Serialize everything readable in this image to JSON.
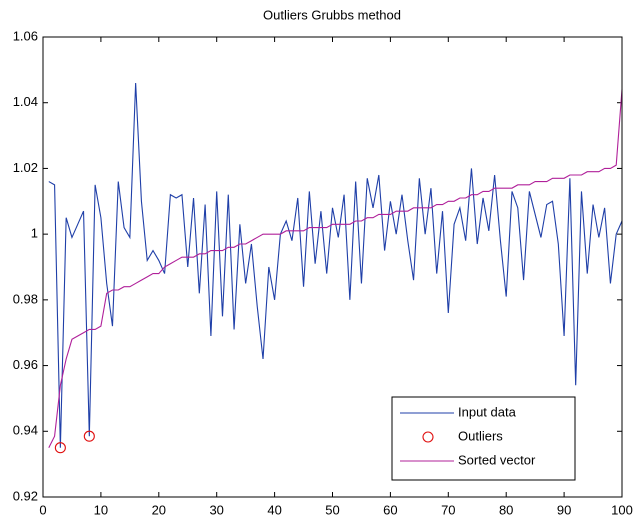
{
  "chart_data": {
    "type": "line",
    "title": "Outliers Grubbs method",
    "x": [
      1,
      2,
      3,
      4,
      5,
      6,
      7,
      8,
      9,
      10,
      11,
      12,
      13,
      14,
      15,
      16,
      17,
      18,
      19,
      20,
      21,
      22,
      23,
      24,
      25,
      26,
      27,
      28,
      29,
      30,
      31,
      32,
      33,
      34,
      35,
      36,
      37,
      38,
      39,
      40,
      41,
      42,
      43,
      44,
      45,
      46,
      47,
      48,
      49,
      50,
      51,
      52,
      53,
      54,
      55,
      56,
      57,
      58,
      59,
      60,
      61,
      62,
      63,
      64,
      65,
      66,
      67,
      68,
      69,
      70,
      71,
      72,
      73,
      74,
      75,
      76,
      77,
      78,
      79,
      80,
      81,
      82,
      83,
      84,
      85,
      86,
      87,
      88,
      89,
      90,
      91,
      92,
      93,
      94,
      95,
      96,
      97,
      98,
      99,
      100
    ],
    "series": [
      {
        "name": "Input data",
        "color": "#1f3fa8",
        "values": [
          1.016,
          1.015,
          0.935,
          1.005,
          0.999,
          1.003,
          1.007,
          0.9385,
          1.015,
          1.005,
          0.985,
          0.972,
          1.016,
          1.002,
          0.999,
          1.046,
          1.01,
          0.992,
          0.995,
          0.992,
          0.988,
          1.012,
          1.011,
          1.012,
          0.99,
          1.011,
          0.982,
          1.009,
          0.969,
          1.013,
          0.975,
          1.012,
          0.971,
          1.003,
          0.985,
          0.997,
          0.978,
          0.962,
          0.99,
          0.98,
          1.0,
          1.004,
          0.998,
          1.011,
          0.984,
          1.013,
          0.991,
          1.007,
          0.988,
          1.008,
          0.999,
          1.012,
          0.98,
          1.016,
          0.985,
          1.017,
          1.008,
          1.018,
          0.995,
          1.01,
          1.0,
          1.012,
          0.998,
          0.986,
          1.017,
          1.0,
          1.014,
          0.988,
          1.007,
          0.976,
          1.003,
          1.008,
          0.998,
          1.02,
          0.997,
          1.011,
          1.001,
          1.018,
          0.998,
          0.981,
          1.013,
          1.008,
          0.986,
          1.013,
          1.006,
          0.999,
          1.009,
          1.01,
          0.997,
          0.969,
          1.017,
          0.954,
          1.013,
          0.988,
          1.009,
          0.999,
          1.008,
          0.985,
          1.0,
          1.004
        ]
      },
      {
        "name": "Outliers",
        "color": "#e01010",
        "marker": "circle",
        "x": [
          3,
          8
        ],
        "values": [
          0.935,
          0.9385
        ]
      },
      {
        "name": "Sorted vector",
        "color": "#b0209a",
        "values": [
          0.935,
          0.9385,
          0.954,
          0.962,
          0.968,
          0.969,
          0.97,
          0.971,
          0.971,
          0.972,
          0.982,
          0.983,
          0.983,
          0.984,
          0.984,
          0.985,
          0.986,
          0.987,
          0.988,
          0.988,
          0.99,
          0.991,
          0.992,
          0.993,
          0.993,
          0.993,
          0.994,
          0.994,
          0.995,
          0.995,
          0.995,
          0.996,
          0.996,
          0.997,
          0.997,
          0.998,
          0.999,
          1.0,
          1.0,
          1.0,
          1.0,
          1.001,
          1.001,
          1.001,
          1.001,
          1.002,
          1.002,
          1.002,
          1.002,
          1.003,
          1.003,
          1.003,
          1.003,
          1.004,
          1.004,
          1.005,
          1.005,
          1.006,
          1.006,
          1.006,
          1.007,
          1.007,
          1.007,
          1.008,
          1.008,
          1.008,
          1.008,
          1.009,
          1.009,
          1.01,
          1.01,
          1.011,
          1.011,
          1.012,
          1.012,
          1.013,
          1.013,
          1.014,
          1.014,
          1.014,
          1.014,
          1.015,
          1.015,
          1.015,
          1.016,
          1.016,
          1.016,
          1.017,
          1.017,
          1.017,
          1.018,
          1.018,
          1.018,
          1.019,
          1.019,
          1.019,
          1.02,
          1.02,
          1.021,
          1.044
        ]
      }
    ],
    "xlim": [
      0,
      100
    ],
    "xticks": [
      0,
      10,
      20,
      30,
      40,
      50,
      60,
      70,
      80,
      90,
      100
    ],
    "ylim": [
      0.92,
      1.06
    ],
    "yticks": [
      0.92,
      0.94,
      0.96,
      0.98,
      1,
      1.02,
      1.04,
      1.06
    ],
    "legend": "lower right"
  }
}
